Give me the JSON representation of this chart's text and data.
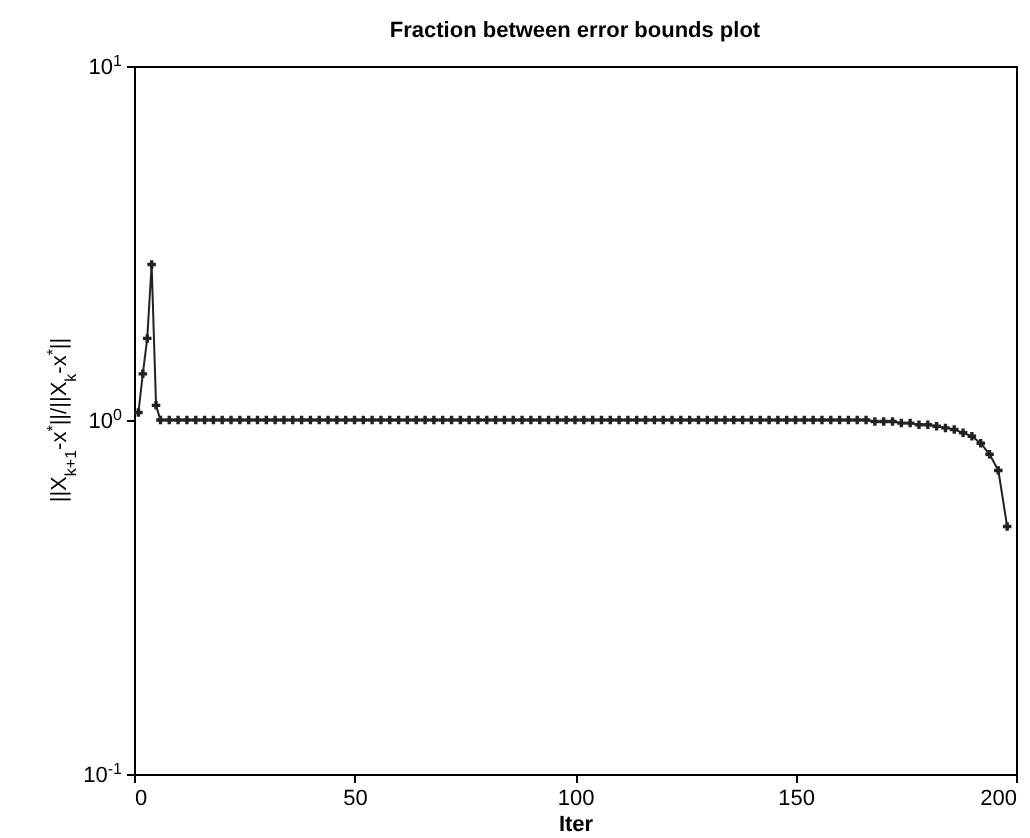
{
  "chart_data": {
    "type": "line",
    "title": "Fraction between error bounds plot",
    "xlabel": "Iter",
    "ylabel": "||X$_{k+1}$-x$^{*}$||/||X$_{k}$-x$^{*}$||",
    "log": "y",
    "marker": "cross",
    "line_style": "solid",
    "grid": false,
    "xlim": [
      0,
      200
    ],
    "xticks": [
      0,
      50,
      100,
      150,
      200
    ],
    "ylim": [
      0.1,
      10
    ],
    "yticks": [
      {
        "value": 0.1,
        "label": "10$^{-1}$"
      },
      {
        "value": 1,
        "label": "10$^{0}$"
      },
      {
        "value": 10,
        "label": "10$^{1}$"
      }
    ],
    "series": [
      {
        "color": "#222222",
        "x": [
          1,
          2,
          3,
          4,
          5,
          6,
          8,
          10,
          12,
          14,
          16,
          18,
          20,
          22,
          24,
          26,
          28,
          30,
          32,
          34,
          36,
          38,
          40,
          42,
          44,
          46,
          48,
          50,
          52,
          54,
          56,
          58,
          60,
          62,
          64,
          66,
          68,
          70,
          72,
          74,
          76,
          78,
          80,
          82,
          84,
          86,
          88,
          90,
          92,
          94,
          96,
          98,
          100,
          102,
          104,
          106,
          108,
          110,
          112,
          114,
          116,
          118,
          120,
          122,
          124,
          126,
          128,
          130,
          132,
          134,
          136,
          138,
          140,
          142,
          144,
          146,
          148,
          150,
          152,
          154,
          156,
          158,
          160,
          162,
          164,
          166,
          168,
          170,
          172,
          174,
          176,
          178,
          180,
          182,
          184,
          186,
          188,
          190,
          192,
          194,
          196,
          198
        ],
        "values": [
          1.05,
          1.35,
          1.7,
          2.75,
          1.1,
          1.0,
          1.0,
          1.0,
          1.0,
          1.0,
          1.0,
          1.0,
          1.0,
          1.0,
          1.0,
          1.0,
          1.0,
          1.0,
          1.0,
          1.0,
          1.0,
          1.0,
          1.0,
          1.0,
          1.0,
          1.0,
          1.0,
          1.0,
          1.0,
          1.0,
          1.0,
          1.0,
          1.0,
          1.0,
          1.0,
          1.0,
          1.0,
          1.0,
          1.0,
          1.0,
          1.0,
          1.0,
          1.0,
          1.0,
          1.0,
          1.0,
          1.0,
          1.0,
          1.0,
          1.0,
          1.0,
          1.0,
          1.0,
          1.0,
          1.0,
          1.0,
          1.0,
          1.0,
          1.0,
          1.0,
          1.0,
          1.0,
          1.0,
          1.0,
          1.0,
          1.0,
          1.0,
          1.0,
          1.0,
          1.0,
          1.0,
          1.0,
          1.0,
          1.0,
          1.0,
          1.0,
          1.0,
          1.0,
          1.0,
          1.0,
          1.0,
          1.0,
          1.0,
          1.0,
          1.0,
          1.0,
          0.99,
          0.99,
          0.99,
          0.98,
          0.98,
          0.97,
          0.97,
          0.96,
          0.95,
          0.94,
          0.92,
          0.9,
          0.86,
          0.8,
          0.72,
          0.5
        ]
      }
    ]
  }
}
